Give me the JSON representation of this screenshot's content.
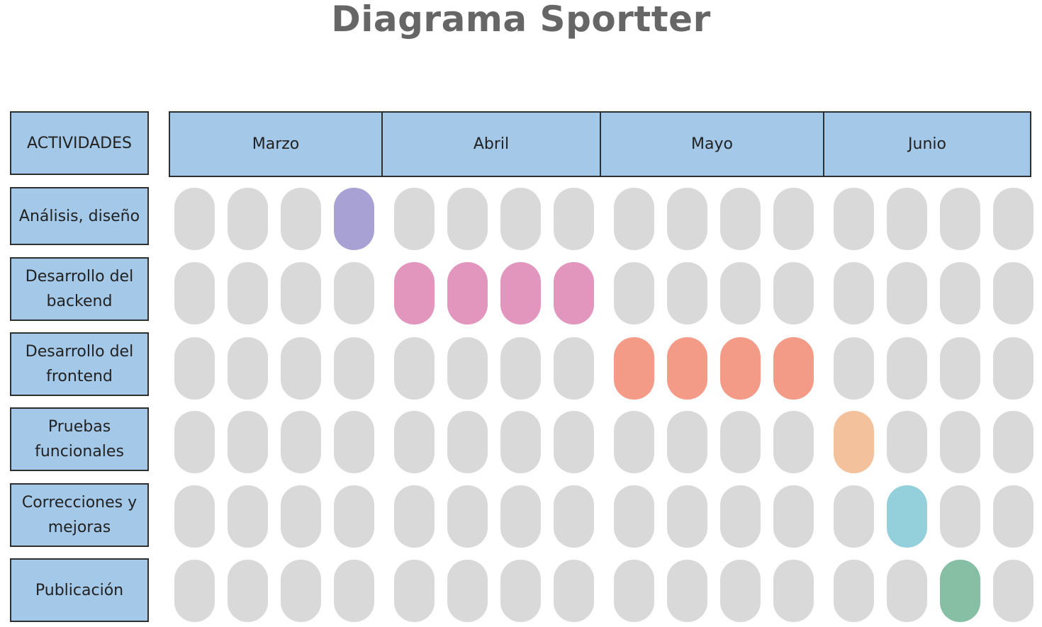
{
  "title": "Diagrama Sportter",
  "header_label": "ACTIVIDADES",
  "months": [
    "Marzo",
    "Abril",
    "Mayo",
    "Junio"
  ],
  "weeks_per_month": 4,
  "empty_color": "#d9d9d9",
  "header_color": "#a4c8e8",
  "activities": [
    {
      "label": "Análisis, diseño",
      "color": "#a8a1d4",
      "weeks": [
        3
      ]
    },
    {
      "label": "Desarrollo del backend",
      "color": "#e296bd",
      "weeks": [
        4,
        5,
        6,
        7
      ]
    },
    {
      "label": "Desarrollo del frontend",
      "color": "#f39b86",
      "weeks": [
        8,
        9,
        10,
        11
      ]
    },
    {
      "label": "Pruebas funcionales",
      "color": "#f3c29d",
      "weeks": [
        12
      ]
    },
    {
      "label": "Correcciones y mejoras",
      "color": "#93d0db",
      "weeks": [
        13
      ]
    },
    {
      "label": "Publicación",
      "color": "#87bfa5",
      "weeks": [
        14
      ]
    }
  ]
}
